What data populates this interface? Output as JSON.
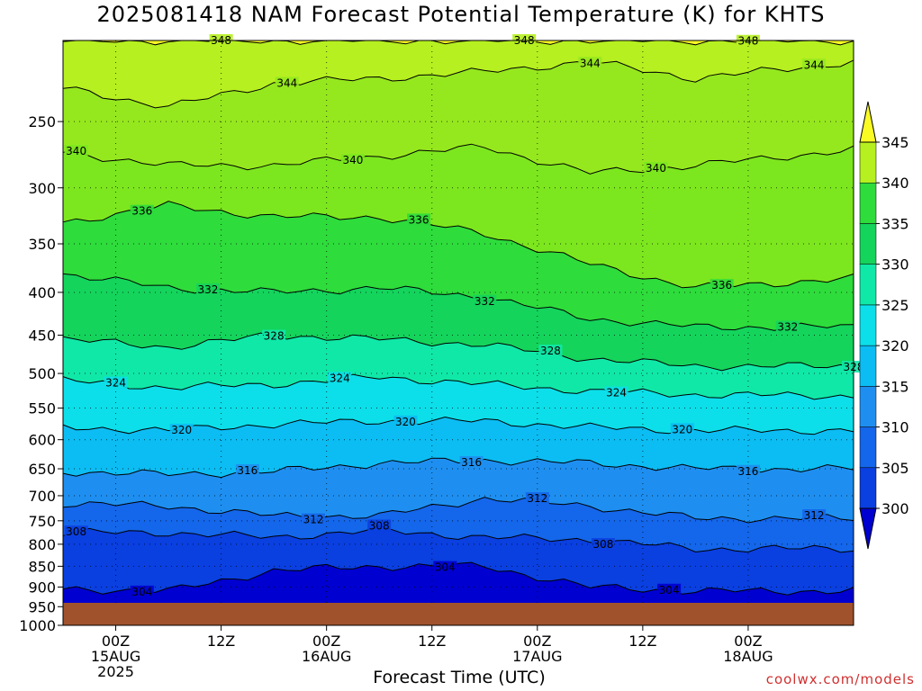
{
  "chart_data": {
    "type": "heatmap",
    "title": "2025081418 NAM Forecast Potential Temperature (K) for KHTS",
    "xlabel": "Forecast Time (UTC)",
    "ylabel": "",
    "y_axis_scale": "log-pressure (inverted)",
    "y_ticks": [
      250,
      300,
      350,
      400,
      450,
      500,
      550,
      600,
      650,
      700,
      750,
      800,
      850,
      900,
      950,
      1000
    ],
    "ylim": [
      1000,
      200
    ],
    "x_ticks": [
      {
        "time": "2025-08-15T00Z",
        "label": [
          "00Z",
          "15AUG",
          "2025"
        ]
      },
      {
        "time": "2025-08-15T12Z",
        "label": [
          "12Z"
        ]
      },
      {
        "time": "2025-08-16T00Z",
        "label": [
          "00Z",
          "16AUG"
        ]
      },
      {
        "time": "2025-08-16T12Z",
        "label": [
          "12Z"
        ]
      },
      {
        "time": "2025-08-17T00Z",
        "label": [
          "00Z",
          "17AUG"
        ]
      },
      {
        "time": "2025-08-17T12Z",
        "label": [
          "12Z"
        ]
      },
      {
        "time": "2025-08-18T00Z",
        "label": [
          "00Z",
          "18AUG"
        ]
      }
    ],
    "xlim": [
      "2025-08-14T18Z",
      "2025-08-18T12Z"
    ],
    "grid": true,
    "colorbar": {
      "levels": [
        300,
        305,
        310,
        315,
        320,
        325,
        330,
        335,
        340,
        345
      ],
      "colors": [
        "#0000d0",
        "#0a3fe0",
        "#1466ea",
        "#1e8ff0",
        "#0cbdf3",
        "#0cdfe9",
        "#10e8a8",
        "#14d45c",
        "#2edc3c",
        "#7ce71e",
        "#b6f020",
        "#fbfb24"
      ],
      "extend": "both"
    },
    "contours": [
      {
        "label": "348",
        "p": [
          200,
          200,
          200,
          200,
          200,
          200,
          200,
          200
        ]
      },
      {
        "label": "344",
        "p": [
          228,
          240,
          225,
          222,
          218,
          212,
          222,
          212
        ]
      },
      {
        "label": "340",
        "p": [
          272,
          282,
          282,
          275,
          268,
          288,
          282,
          270
        ]
      },
      {
        "label": "336",
        "p": [
          330,
          315,
          325,
          325,
          340,
          370,
          395,
          385
        ]
      },
      {
        "label": "332",
        "p": [
          380,
          395,
          400,
          395,
          405,
          430,
          440,
          440
        ]
      },
      {
        "label": "328",
        "p": [
          455,
          465,
          450,
          455,
          462,
          480,
          490,
          490
        ]
      },
      {
        "label": "324",
        "p": [
          510,
          520,
          515,
          505,
          515,
          525,
          530,
          532
        ]
      },
      {
        "label": "320",
        "p": [
          580,
          585,
          575,
          570,
          570,
          580,
          585,
          585
        ]
      },
      {
        "label": "316",
        "p": [
          655,
          660,
          655,
          640,
          635,
          640,
          650,
          650
        ]
      },
      {
        "label": "312",
        "p": [
          715,
          720,
          740,
          740,
          705,
          720,
          745,
          745
        ]
      },
      {
        "label": "308",
        "p": [
          775,
          775,
          785,
          770,
          785,
          790,
          810,
          810
        ]
      },
      {
        "label": "304",
        "p": [
          905,
          910,
          860,
          850,
          850,
          900,
          910,
          910
        ]
      }
    ],
    "contour_times": [
      "2025-08-14T18Z",
      "2025-08-15T06Z",
      "2025-08-15T18Z",
      "2025-08-16T06Z",
      "2025-08-16T18Z",
      "2025-08-17T06Z",
      "2025-08-17T18Z",
      "2025-08-18T12Z"
    ],
    "ground": {
      "color": "#a0522d"
    }
  },
  "credit": "coolwx.com/models"
}
